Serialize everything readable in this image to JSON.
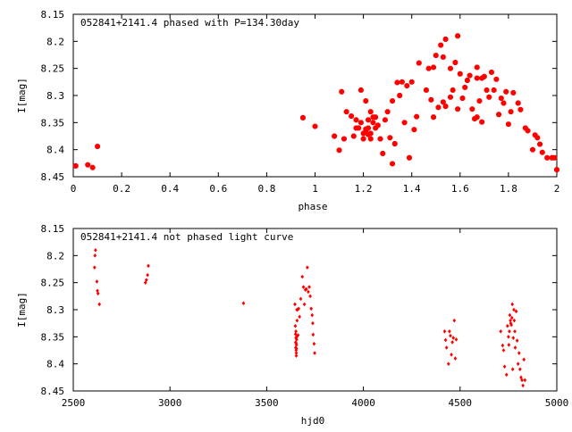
{
  "chart_data": [
    {
      "type": "scatter",
      "title": "052841+2141.4 phased with P=134.30day",
      "xlabel": "phase",
      "ylabel": "I[mag]",
      "xlim": [
        0,
        2
      ],
      "ylim": [
        8.15,
        8.45
      ],
      "y_inverted": true,
      "grid": false,
      "marker": "star",
      "color": "#ff0000",
      "xticks": [
        "0",
        "0.2",
        "0.4",
        "0.6",
        "0.8",
        "1",
        "1.2",
        "1.4",
        "1.6",
        "1.8",
        "2"
      ],
      "yticks": [
        "8.15",
        "8.2",
        "8.25",
        "8.3",
        "8.35",
        "8.4",
        "8.45"
      ],
      "points": [
        [
          0.01,
          8.43
        ],
        [
          0.06,
          8.428
        ],
        [
          0.08,
          8.433
        ],
        [
          0.1,
          8.394
        ],
        [
          0.95,
          8.341
        ],
        [
          1.0,
          8.357
        ],
        [
          1.08,
          8.375
        ],
        [
          1.1,
          8.401
        ],
        [
          1.11,
          8.293
        ],
        [
          1.12,
          8.38
        ],
        [
          1.13,
          8.33
        ],
        [
          1.15,
          8.338
        ],
        [
          1.16,
          8.375
        ],
        [
          1.17,
          8.345
        ],
        [
          1.17,
          8.36
        ],
        [
          1.18,
          8.36
        ],
        [
          1.19,
          8.29
        ],
        [
          1.19,
          8.35
        ],
        [
          1.2,
          8.37
        ],
        [
          1.2,
          8.38
        ],
        [
          1.21,
          8.362
        ],
        [
          1.21,
          8.366
        ],
        [
          1.22,
          8.372
        ],
        [
          1.22,
          8.36
        ],
        [
          1.22,
          8.345
        ],
        [
          1.23,
          8.33
        ],
        [
          1.23,
          8.37
        ],
        [
          1.23,
          8.38
        ],
        [
          1.24,
          8.35
        ],
        [
          1.24,
          8.34
        ],
        [
          1.25,
          8.36
        ],
        [
          1.25,
          8.34
        ],
        [
          1.21,
          8.31
        ],
        [
          1.26,
          8.355
        ],
        [
          1.27,
          8.38
        ],
        [
          1.28,
          8.407
        ],
        [
          1.29,
          8.345
        ],
        [
          1.3,
          8.33
        ],
        [
          1.31,
          8.378
        ],
        [
          1.32,
          8.426
        ],
        [
          1.32,
          8.31
        ],
        [
          1.33,
          8.389
        ],
        [
          1.34,
          8.276
        ],
        [
          1.35,
          8.3
        ],
        [
          1.36,
          8.275
        ],
        [
          1.37,
          8.35
        ],
        [
          1.38,
          8.282
        ],
        [
          1.39,
          8.415
        ],
        [
          1.4,
          8.275
        ],
        [
          1.41,
          8.363
        ],
        [
          1.42,
          8.339
        ],
        [
          1.43,
          8.24
        ],
        [
          1.46,
          8.29
        ],
        [
          1.47,
          8.25
        ],
        [
          1.48,
          8.308
        ],
        [
          1.49,
          8.34
        ],
        [
          1.49,
          8.248
        ],
        [
          1.5,
          8.226
        ],
        [
          1.51,
          8.322
        ],
        [
          1.52,
          8.207
        ],
        [
          1.53,
          8.312
        ],
        [
          1.53,
          8.229
        ],
        [
          1.54,
          8.196
        ],
        [
          1.54,
          8.32
        ],
        [
          1.56,
          8.25
        ],
        [
          1.56,
          8.303
        ],
        [
          1.57,
          8.29
        ],
        [
          1.58,
          8.239
        ],
        [
          1.59,
          8.19
        ],
        [
          1.59,
          8.325
        ],
        [
          1.6,
          8.26
        ],
        [
          1.61,
          8.305
        ],
        [
          1.62,
          8.285
        ],
        [
          1.63,
          8.272
        ],
        [
          1.64,
          8.263
        ],
        [
          1.65,
          8.325
        ],
        [
          1.66,
          8.343
        ],
        [
          1.67,
          8.248
        ],
        [
          1.67,
          8.268
        ],
        [
          1.67,
          8.34
        ],
        [
          1.68,
          8.31
        ],
        [
          1.69,
          8.268
        ],
        [
          1.69,
          8.349
        ],
        [
          1.7,
          8.265
        ],
        [
          1.71,
          8.29
        ],
        [
          1.72,
          8.303
        ],
        [
          1.73,
          8.257
        ],
        [
          1.74,
          8.29
        ],
        [
          1.75,
          8.27
        ],
        [
          1.76,
          8.335
        ],
        [
          1.77,
          8.305
        ],
        [
          1.78,
          8.314
        ],
        [
          1.79,
          8.293
        ],
        [
          1.8,
          8.353
        ],
        [
          1.81,
          8.33
        ],
        [
          1.82,
          8.295
        ],
        [
          1.84,
          8.314
        ],
        [
          1.85,
          8.326
        ],
        [
          1.87,
          8.36
        ],
        [
          1.88,
          8.365
        ],
        [
          1.9,
          8.4
        ],
        [
          1.91,
          8.373
        ],
        [
          1.92,
          8.378
        ],
        [
          1.93,
          8.39
        ],
        [
          1.94,
          8.405
        ],
        [
          1.96,
          8.415
        ],
        [
          1.98,
          8.415
        ],
        [
          1.99,
          8.415
        ],
        [
          2.0,
          8.437
        ]
      ]
    },
    {
      "type": "scatter",
      "title": "052841+2141.4 not phased light curve",
      "xlabel": "hjd0",
      "ylabel": "I[mag]",
      "xlim": [
        2500,
        5000
      ],
      "ylim": [
        8.15,
        8.45
      ],
      "y_inverted": true,
      "grid": false,
      "marker": "diamond",
      "color": "#ff0000",
      "xticks": [
        "2500",
        "3000",
        "3500",
        "4000",
        "4500",
        "5000"
      ],
      "yticks": [
        "8.15",
        "8.2",
        "8.25",
        "8.3",
        "8.35",
        "8.4",
        "8.45"
      ],
      "points": [
        [
          2612,
          8.2
        ],
        [
          2615,
          8.19
        ],
        [
          2610,
          8.222
        ],
        [
          2622,
          8.248
        ],
        [
          2625,
          8.265
        ],
        [
          2628,
          8.27
        ],
        [
          2635,
          8.29
        ],
        [
          2873,
          8.25
        ],
        [
          2878,
          8.245
        ],
        [
          2884,
          8.236
        ],
        [
          2888,
          8.219
        ],
        [
          3380,
          8.288
        ],
        [
          3646,
          8.29
        ],
        [
          3648,
          8.33
        ],
        [
          3649,
          8.345
        ],
        [
          3650,
          8.36
        ],
        [
          3650,
          8.37
        ],
        [
          3651,
          8.34
        ],
        [
          3651,
          8.352
        ],
        [
          3652,
          8.362
        ],
        [
          3652,
          8.375
        ],
        [
          3653,
          8.38
        ],
        [
          3653,
          8.385
        ],
        [
          3654,
          8.372
        ],
        [
          3654,
          8.365
        ],
        [
          3655,
          8.355
        ],
        [
          3655,
          8.35
        ],
        [
          3656,
          8.3
        ],
        [
          3657,
          8.32
        ],
        [
          3659,
          8.3
        ],
        [
          3662,
          8.347
        ],
        [
          3665,
          8.298
        ],
        [
          3670,
          8.313
        ],
        [
          3676,
          8.28
        ],
        [
          3684,
          8.239
        ],
        [
          3690,
          8.258
        ],
        [
          3695,
          8.29
        ],
        [
          3700,
          8.263
        ],
        [
          3705,
          8.262
        ],
        [
          3710,
          8.222
        ],
        [
          3715,
          8.267
        ],
        [
          3720,
          8.258
        ],
        [
          3725,
          8.275
        ],
        [
          3730,
          8.298
        ],
        [
          3735,
          8.31
        ],
        [
          3738,
          8.325
        ],
        [
          3740,
          8.346
        ],
        [
          3745,
          8.363
        ],
        [
          3748,
          8.38
        ],
        [
          4420,
          8.34
        ],
        [
          4425,
          8.356
        ],
        [
          4430,
          8.37
        ],
        [
          4440,
          8.4
        ],
        [
          4445,
          8.34
        ],
        [
          4450,
          8.348
        ],
        [
          4455,
          8.383
        ],
        [
          4460,
          8.36
        ],
        [
          4465,
          8.352
        ],
        [
          4470,
          8.32
        ],
        [
          4475,
          8.39
        ],
        [
          4480,
          8.355
        ],
        [
          4710,
          8.34
        ],
        [
          4720,
          8.366
        ],
        [
          4725,
          8.375
        ],
        [
          4730,
          8.405
        ],
        [
          4740,
          8.42
        ],
        [
          4745,
          8.33
        ],
        [
          4750,
          8.35
        ],
        [
          4752,
          8.365
        ],
        [
          4755,
          8.34
        ],
        [
          4757,
          8.31
        ],
        [
          4760,
          8.32
        ],
        [
          4762,
          8.325
        ],
        [
          4765,
          8.328
        ],
        [
          4768,
          8.315
        ],
        [
          4770,
          8.29
        ],
        [
          4772,
          8.41
        ],
        [
          4775,
          8.352
        ],
        [
          4778,
          8.3
        ],
        [
          4780,
          8.32
        ],
        [
          4783,
          8.34
        ],
        [
          4785,
          8.37
        ],
        [
          4790,
          8.303
        ],
        [
          4795,
          8.357
        ],
        [
          4800,
          8.4
        ],
        [
          4805,
          8.38
        ],
        [
          4810,
          8.41
        ],
        [
          4815,
          8.425
        ],
        [
          4820,
          8.43
        ],
        [
          4825,
          8.44
        ],
        [
          4830,
          8.392
        ],
        [
          4835,
          8.43
        ]
      ]
    }
  ]
}
